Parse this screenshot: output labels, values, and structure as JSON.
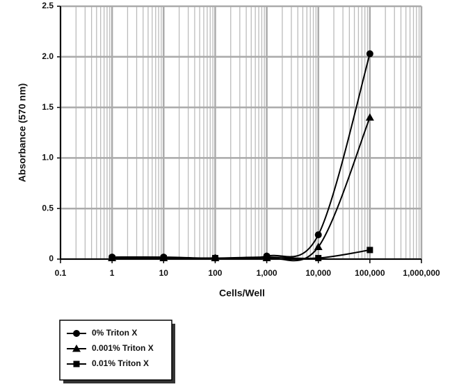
{
  "chart_data": {
    "type": "line",
    "x_label": "Cells/Well",
    "y_label": "Absorbance (570 nm)",
    "x": [
      1,
      10,
      100,
      1000,
      10000,
      100000
    ],
    "series": [
      {
        "name": "0% Triton X",
        "color": "#000000",
        "marker": "circle",
        "values": [
          0.02,
          0.02,
          0.01,
          0.03,
          0.24,
          2.03
        ]
      },
      {
        "name": "0.001% Triton X",
        "color": "#000000",
        "marker": "triangle",
        "values": [
          0.01,
          0.01,
          0.01,
          0.01,
          0.12,
          1.4
        ]
      },
      {
        "name": "0.01% Triton X",
        "color": "#000000",
        "marker": "square",
        "values": [
          0.01,
          0.01,
          0.01,
          0.02,
          0.01,
          0.09
        ]
      }
    ],
    "xscale": "log",
    "xlim": [
      0.1,
      1000000
    ],
    "xticks": [
      0.1,
      1,
      10,
      100,
      {
        "value": 1000,
        "label": "1,000"
      },
      {
        "value": 10000,
        "label": "10,000"
      },
      {
        "value": 100000,
        "label": "100,000"
      },
      {
        "value": 1000000,
        "label": "1,000,000"
      }
    ],
    "ylim": [
      0,
      2.5
    ],
    "yticks": [
      0,
      0.5,
      {
        "value": 1,
        "label": "1.0"
      },
      1.5,
      {
        "value": 2,
        "label": "2.0"
      },
      2.5
    ],
    "grid": true,
    "legend": "bottom-left"
  }
}
